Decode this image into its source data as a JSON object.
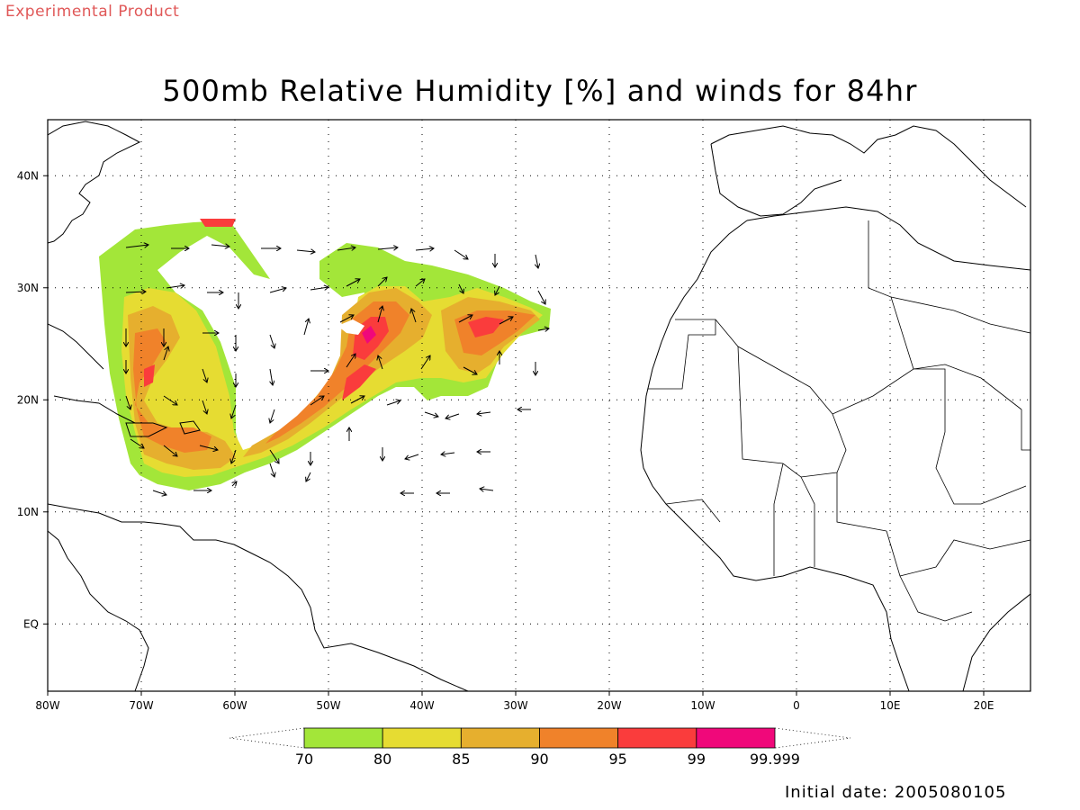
{
  "header": {
    "product_label": "Experimental Product",
    "title": "500mb Relative Humidity [%] and winds for 84hr"
  },
  "footer": {
    "initial_date": "Initial date: 2005080105"
  },
  "map": {
    "lon_range": [
      -80,
      25
    ],
    "lat_range": [
      -6,
      45
    ],
    "lon_ticks": [
      {
        "label": "80W",
        "value": -80
      },
      {
        "label": "70W",
        "value": -70
      },
      {
        "label": "60W",
        "value": -60
      },
      {
        "label": "50W",
        "value": -50
      },
      {
        "label": "40W",
        "value": -40
      },
      {
        "label": "30W",
        "value": -30
      },
      {
        "label": "20W",
        "value": -20
      },
      {
        "label": "10W",
        "value": -10
      },
      {
        "label": "0",
        "value": 0
      },
      {
        "label": "10E",
        "value": 10
      },
      {
        "label": "20E",
        "value": 20
      }
    ],
    "lat_ticks": [
      {
        "label": "EQ",
        "value": 0
      },
      {
        "label": "10N",
        "value": 10
      },
      {
        "label": "20N",
        "value": 20
      },
      {
        "label": "30N",
        "value": 30
      },
      {
        "label": "40N",
        "value": 40
      }
    ],
    "grid": "dotted"
  },
  "colorbar": {
    "colors": [
      "#a3e639",
      "#e6dc32",
      "#e6af2e",
      "#f0822a",
      "#fa3c3c",
      "#f0087a"
    ],
    "labels": [
      "70",
      "80",
      "85",
      "90",
      "95",
      "99",
      "99.999"
    ]
  }
}
